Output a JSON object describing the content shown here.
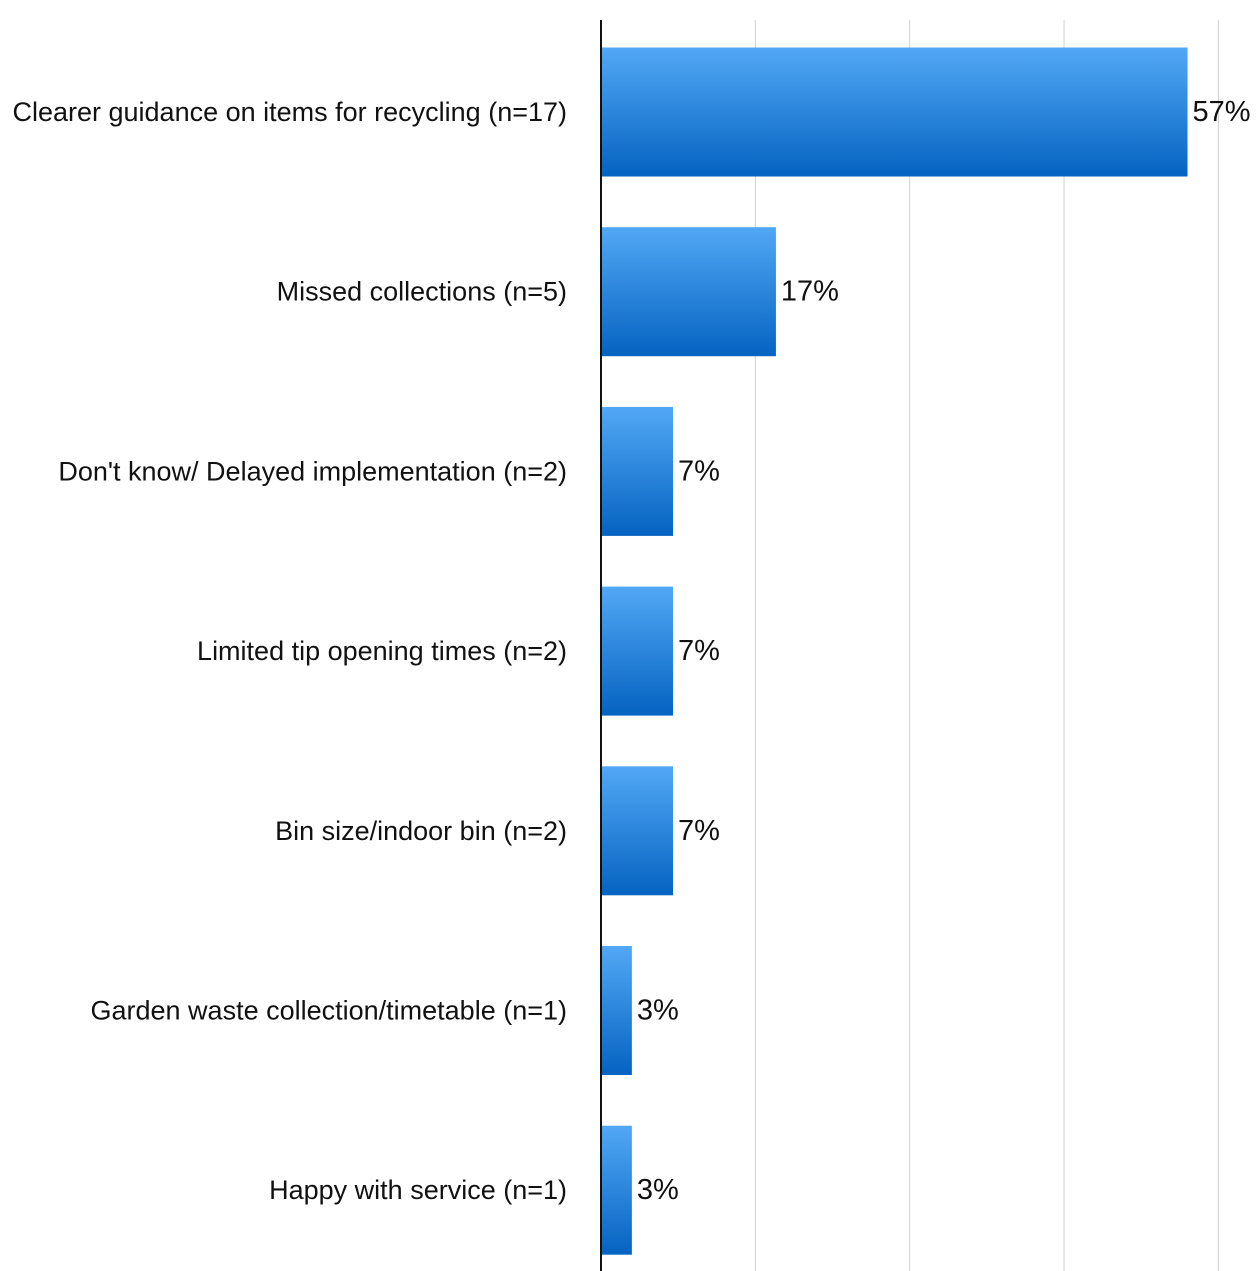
{
  "chart_data": {
    "type": "bar",
    "orientation": "horizontal",
    "categories": [
      "Clearer guidance on items for recycling (n=17)",
      "Missed collections (n=5)",
      "Don't know/ Delayed implementation (n=2)",
      "Limited tip opening times (n=2)",
      "Bin size/indoor bin (n=2)",
      "Garden waste collection/timetable (n=1)",
      "Happy with service (n=1)"
    ],
    "values": [
      57,
      17,
      7,
      7,
      7,
      3,
      3
    ],
    "value_labels": [
      "57%",
      "17%",
      "7%",
      "7%",
      "7%",
      "3%",
      "3%"
    ],
    "xlim": [
      0,
      60
    ],
    "grid": true,
    "legend": "none",
    "colors": {
      "bar_top": "#52a8f5",
      "bar_bottom": "#0563c1",
      "grid": "#d0d0d0",
      "axis": "#111111"
    }
  }
}
